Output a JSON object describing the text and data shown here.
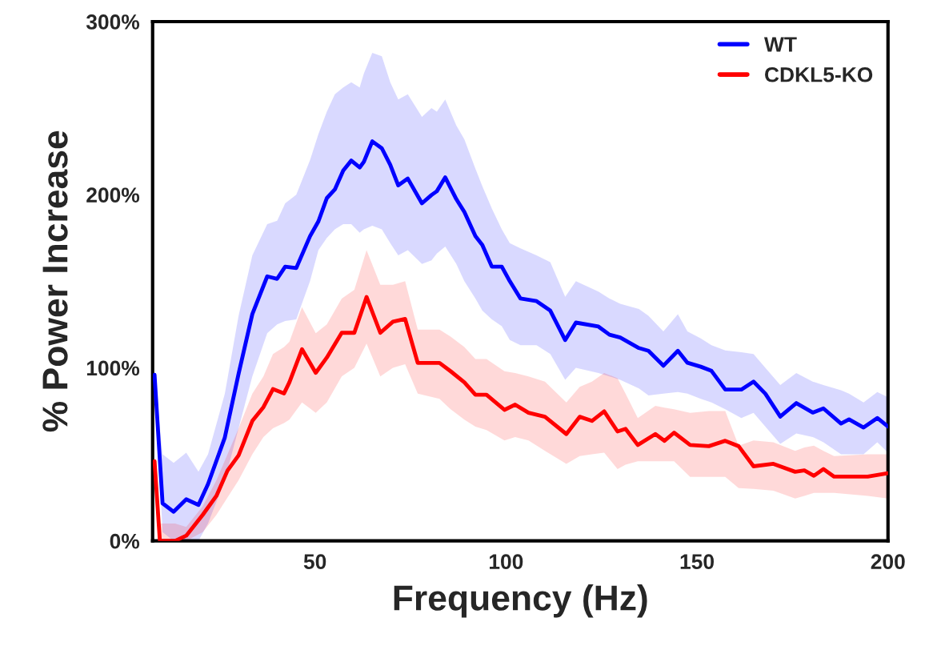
{
  "chart_data": {
    "type": "line",
    "xlabel": "Frequency (Hz)",
    "ylabel": "% Power Increase",
    "xlim": [
      7.5,
      200
    ],
    "xticks": [
      50,
      100,
      150,
      200
    ],
    "ylim": [
      0,
      300
    ],
    "yticks": [
      {
        "value": 0,
        "label": "0%"
      },
      {
        "value": 100,
        "label": "100%"
      },
      {
        "value": 200,
        "label": "200%"
      },
      {
        "value": 300,
        "label": "300%"
      }
    ],
    "grid": false,
    "legend": "top right",
    "marker": "none",
    "line_style": "solid",
    "series": [
      {
        "name": "WT",
        "color": "#0000ff",
        "x": [
          8,
          10.1,
          13,
          16.3,
          19.5,
          22,
          26.4,
          30,
          33.6,
          37.5,
          40.1,
          42.2,
          45.1,
          48.7,
          50.9,
          53.1,
          55.2,
          57.4,
          59.5,
          61.7,
          62.8,
          65,
          67.5,
          69.7,
          71.8,
          74.3,
          78,
          80.5,
          81.9,
          84.1,
          87,
          89.1,
          92,
          93.8,
          96.3,
          98.9,
          101,
          103.8,
          108,
          111.6,
          115.5,
          118.3,
          124.2,
          127.1,
          129.9,
          134.8,
          137.3,
          141.2,
          145,
          147.5,
          151,
          153.8,
          157.4,
          161.6,
          164.8,
          167.9,
          171.8,
          176,
          180.3,
          183.1,
          187.7,
          189.8,
          193.6,
          197.2,
          200
        ],
        "values": [
          96,
          21.7,
          16.8,
          24,
          20.8,
          32.8,
          59.7,
          96.5,
          131,
          152.8,
          151.4,
          158.4,
          157.6,
          176,
          184.6,
          198,
          203,
          214,
          219.7,
          215.7,
          219,
          230.8,
          226.8,
          217.3,
          205.4,
          209.3,
          195,
          199.8,
          202,
          210,
          197.4,
          190,
          176,
          171,
          158.4,
          158.4,
          150,
          140,
          138.5,
          133,
          116,
          126.1,
          123.8,
          119.1,
          117.5,
          111.4,
          109.8,
          101.2,
          109.8,
          102.9,
          100.6,
          98.2,
          87.4,
          87.4,
          92,
          85,
          71.8,
          79.6,
          74.1,
          76.5,
          67.8,
          70.2,
          65.5,
          71,
          66
        ],
        "upper": [
          96,
          50,
          45,
          51,
          40,
          50,
          85,
          130,
          165,
          183,
          185,
          195,
          200,
          220,
          235,
          248,
          258,
          262,
          265,
          262,
          270,
          282,
          280,
          265,
          255,
          258,
          245,
          250,
          248,
          255,
          240,
          232,
          215,
          205,
          192,
          180,
          172,
          169,
          165,
          161,
          141,
          150,
          144,
          140,
          137,
          134,
          130,
          121,
          131,
          121,
          117,
          113,
          110,
          109,
          108,
          100,
          90,
          97,
          92,
          90,
          87,
          85,
          80,
          86,
          83
        ],
        "lower": [
          96,
          5,
          0,
          0,
          0,
          10,
          35,
          65,
          95,
          120,
          125,
          127,
          128,
          150,
          168,
          175,
          180,
          183,
          183,
          178,
          180,
          182,
          180,
          172,
          165,
          168,
          160,
          162,
          166,
          170,
          160,
          150,
          140,
          133,
          128,
          124,
          116,
          113,
          113,
          108,
          93,
          100,
          97,
          95,
          93,
          88,
          84,
          85,
          86,
          85,
          82,
          80,
          76,
          71,
          74,
          66,
          56,
          62,
          60,
          57,
          50,
          50,
          50,
          57,
          51
        ]
      },
      {
        "name": "CDKL5-KO",
        "color": "#ff0000",
        "x": [
          8,
          9.4,
          13.4,
          16.3,
          20.6,
          24.2,
          27.1,
          30,
          33.6,
          36.5,
          39,
          41.9,
          43.3,
          46.6,
          50.2,
          53.1,
          57,
          60.3,
          63.5,
          67.1,
          70.4,
          73.6,
          76.9,
          82.6,
          85.5,
          89.1,
          92,
          94.9,
          99.6,
          102.4,
          105.9,
          110.2,
          115.8,
          119.3,
          122.5,
          125.7,
          129.2,
          131.3,
          134.5,
          139.1,
          141.5,
          144,
          148.2,
          153.1,
          157.4,
          160.9,
          164.8,
          170,
          175.7,
          178.1,
          180.6,
          183.1,
          185.9,
          194.7,
          200
        ],
        "values": [
          46,
          0,
          0,
          3,
          15,
          26,
          40.6,
          49.4,
          69.3,
          77.2,
          87.7,
          85.2,
          91.6,
          110.7,
          97.1,
          105.9,
          120.2,
          120.2,
          140.9,
          120.2,
          126.6,
          128.2,
          102.8,
          102.8,
          98,
          91.6,
          84.4,
          84.4,
          75.7,
          78.7,
          74,
          71.7,
          61.7,
          71.7,
          69.3,
          74.8,
          63.2,
          64.7,
          55.4,
          61.7,
          57.8,
          62.5,
          55.4,
          54.7,
          57.8,
          54.7,
          43.1,
          44.5,
          39.9,
          40.7,
          37.6,
          41.5,
          37.1,
          37.1,
          39.1
        ],
        "upper": [
          46,
          10,
          10,
          8,
          20,
          35,
          50,
          65,
          85,
          95,
          108,
          112,
          115,
          135,
          120,
          125,
          140,
          145,
          168,
          148,
          148,
          150,
          122,
          122,
          118,
          112,
          105,
          105,
          98,
          97,
          95,
          92,
          80,
          89,
          92,
          97,
          94,
          85,
          71,
          78,
          77,
          76,
          74,
          75,
          75,
          55,
          58,
          57,
          52,
          54,
          55,
          52,
          49,
          50,
          50
        ],
        "lower": [
          46,
          0,
          0,
          0,
          5,
          15,
          25,
          35,
          50,
          60,
          65,
          68,
          70,
          80,
          74,
          80,
          95,
          100,
          114,
          95,
          100,
          102,
          85,
          82,
          76,
          70,
          66,
          64,
          58,
          60,
          58,
          52,
          44.5,
          49,
          50,
          51,
          41.5,
          44,
          46,
          46,
          46,
          46,
          37,
          37,
          37,
          30.5,
          30,
          29,
          24.5,
          26,
          27.7,
          27.7,
          27.7,
          26,
          24.5
        ]
      }
    ]
  }
}
